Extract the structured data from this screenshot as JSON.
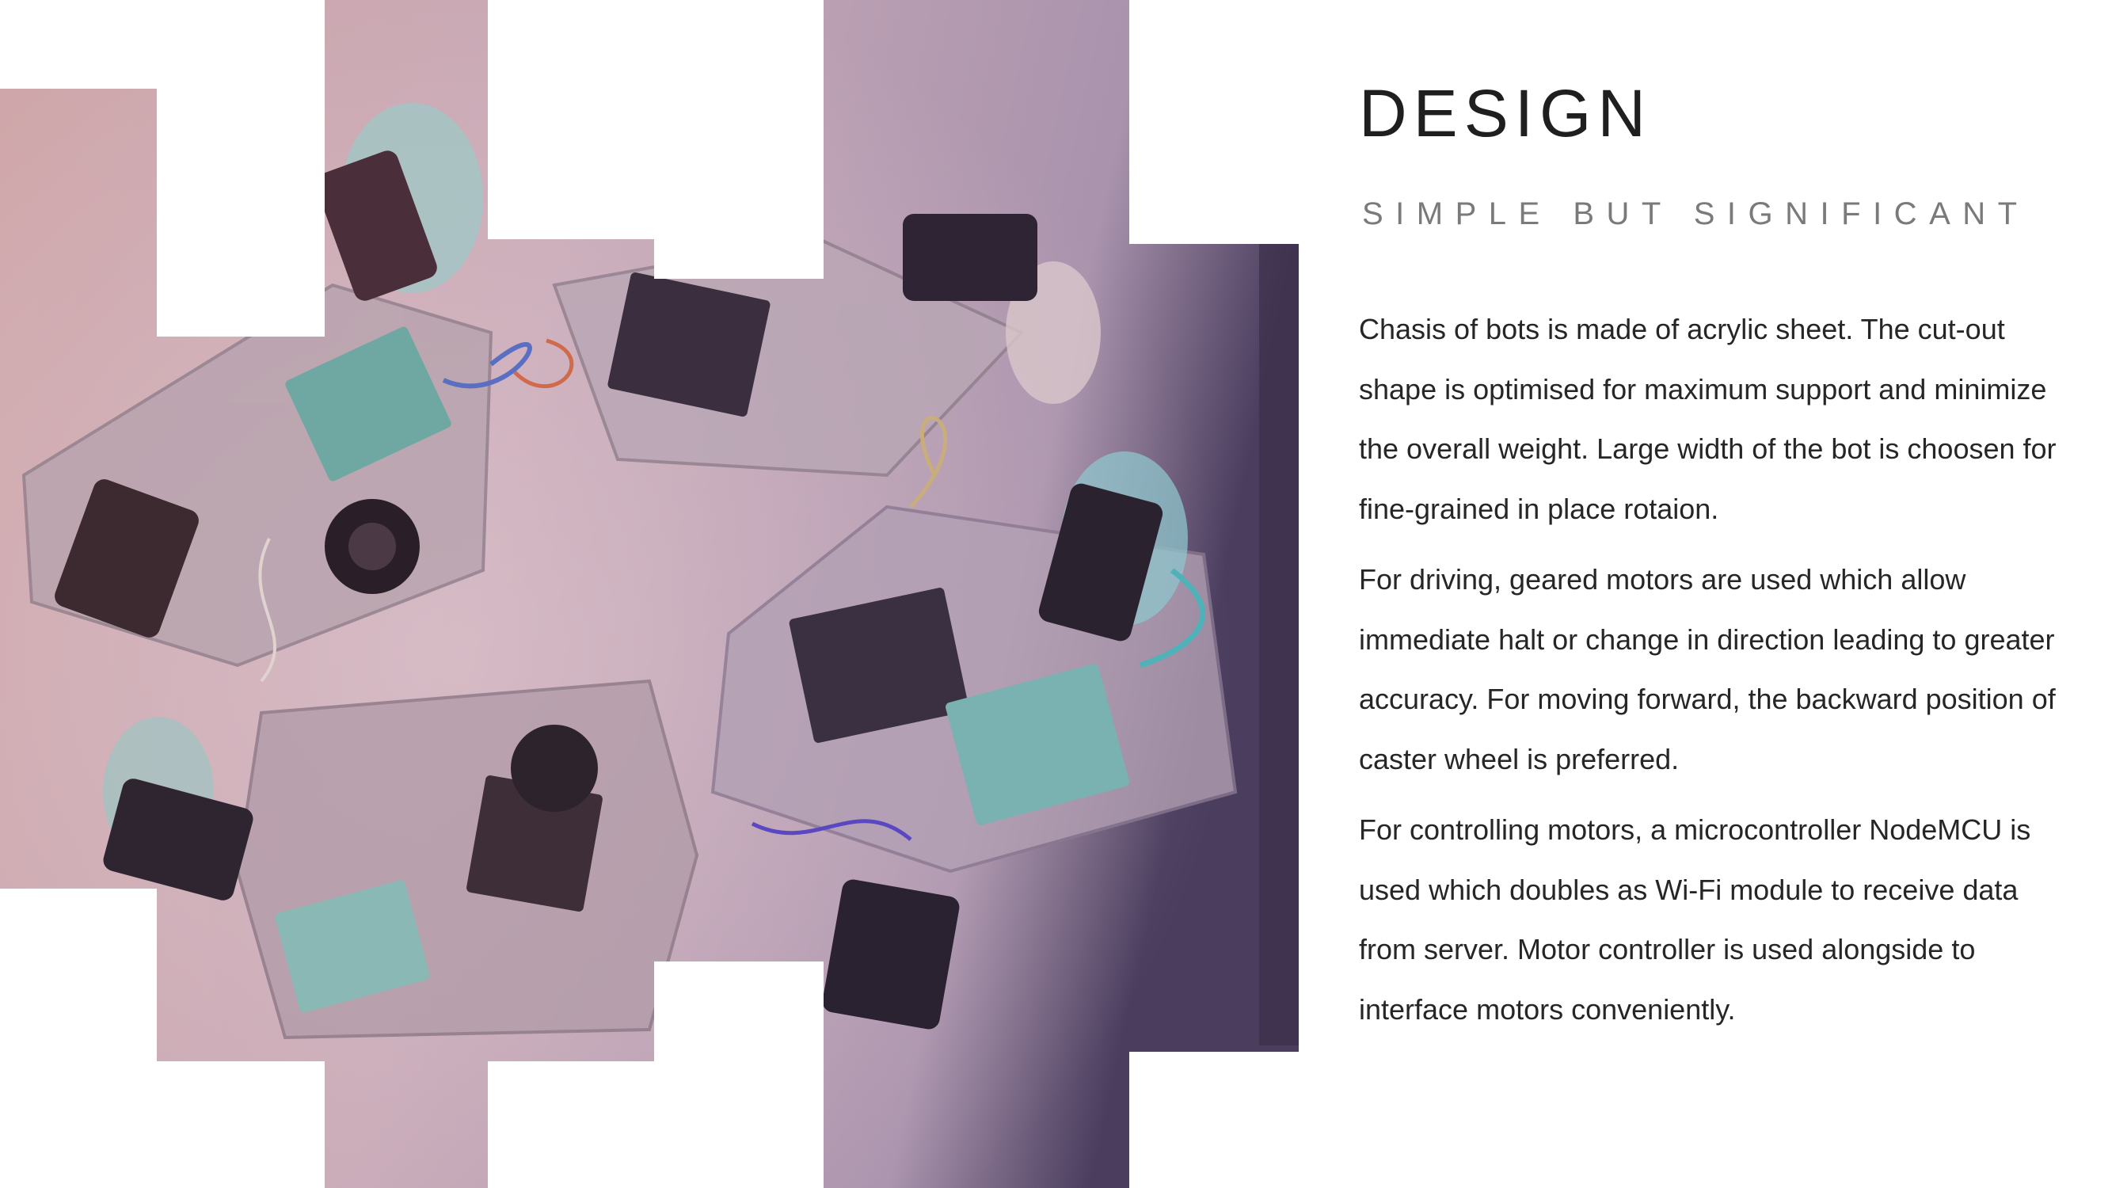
{
  "slide": {
    "title": "DESIGN",
    "subtitle": "SIMPLE BUT SIGNIFICANT",
    "paragraphs": [
      "Chasis of bots is made of acrylic sheet. The cut-out shape is optimised for maximum support and minimize the overall weight. Large width of the bot is choosen for fine-grained in place rotaion.",
      "For driving, geared motors are used which allow immediate halt or change in direction leading to greater accuracy. For moving forward, the backward position of caster wheel is preferred.",
      "For controlling motors, a microcontroller NodeMCU is used which doubles as Wi-Fi module to receive data from server. Motor controller is used alongside to interface motors conveniently."
    ]
  },
  "collage": {
    "image_subject": "robot-bots-photo",
    "tint_color": "#a9808f",
    "dark_edge_color": "#3a2f4a"
  }
}
